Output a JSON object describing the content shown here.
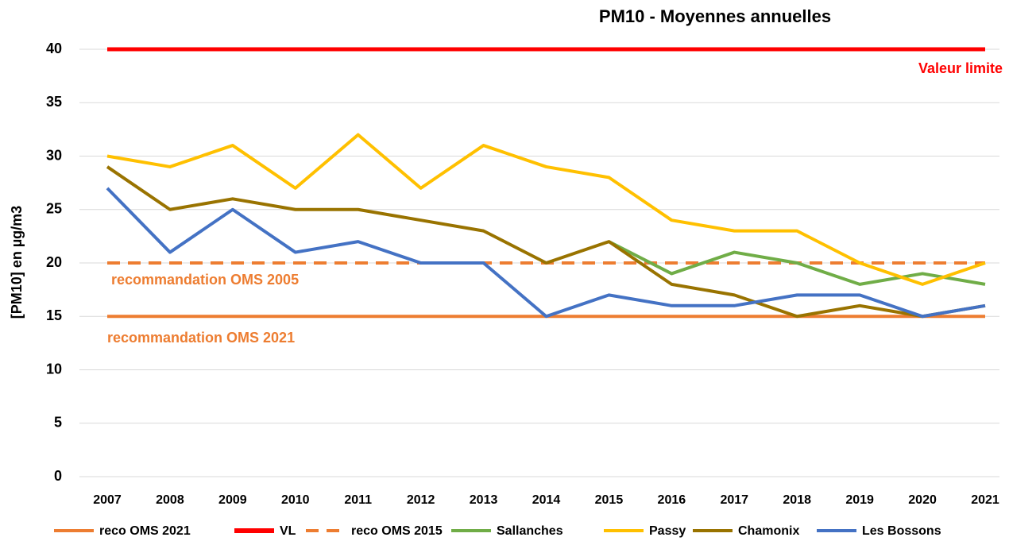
{
  "chart_data": {
    "type": "line",
    "title": "PM10 - Moyennes annuelles",
    "y_label": "[PM10] en µg/m3",
    "categories": [
      "2007",
      "2008",
      "2009",
      "2010",
      "2011",
      "2012",
      "2013",
      "2014",
      "2015",
      "2016",
      "2017",
      "2018",
      "2019",
      "2020",
      "2021"
    ],
    "series": [
      {
        "name": "reco OMS 2021",
        "color": "#ed7d31",
        "dashed": false,
        "values": [
          15,
          15,
          15,
          15,
          15,
          15,
          15,
          15,
          15,
          15,
          15,
          15,
          15,
          15,
          15
        ]
      },
      {
        "name": "VL",
        "color": "#ff0000",
        "dashed": false,
        "values": [
          40,
          40,
          40,
          40,
          40,
          40,
          40,
          40,
          40,
          40,
          40,
          40,
          40,
          40,
          40
        ]
      },
      {
        "name": "reco OMS 2015",
        "color": "#ed7d31",
        "dashed": true,
        "values": [
          20,
          20,
          20,
          20,
          20,
          20,
          20,
          20,
          20,
          20,
          20,
          20,
          20,
          20,
          20
        ]
      },
      {
        "name": "Sallanches",
        "color": "#70ad47",
        "dashed": false,
        "values": [
          null,
          null,
          null,
          null,
          null,
          null,
          null,
          null,
          22,
          19,
          21,
          20,
          18,
          19,
          18
        ]
      },
      {
        "name": "Passy",
        "color": "#ffc000",
        "dashed": false,
        "values": [
          30,
          29,
          31,
          27,
          32,
          27,
          31,
          29,
          28,
          24,
          23,
          23,
          20,
          18,
          20
        ]
      },
      {
        "name": "Chamonix",
        "color": "#997300",
        "dashed": false,
        "values": [
          29,
          25,
          26,
          25,
          25,
          24,
          23,
          20,
          22,
          18,
          17,
          15,
          16,
          15,
          16
        ]
      },
      {
        "name": "Les Bossons",
        "color": "#4472c4",
        "dashed": false,
        "values": [
          27,
          21,
          25,
          21,
          22,
          20,
          20,
          15,
          17,
          16,
          16,
          17,
          17,
          15,
          16
        ]
      }
    ],
    "annotations": [
      {
        "text": "Valeur limite",
        "color": "#ff0000"
      },
      {
        "text": "recommandation OMS 2005",
        "color": "#ed7d31"
      },
      {
        "text": "recommandation OMS 2021",
        "color": "#ed7d31"
      }
    ],
    "ylim": [
      0,
      40
    ],
    "yticks": [
      0,
      5,
      10,
      15,
      20,
      25,
      30,
      35,
      40
    ],
    "grid": true
  }
}
